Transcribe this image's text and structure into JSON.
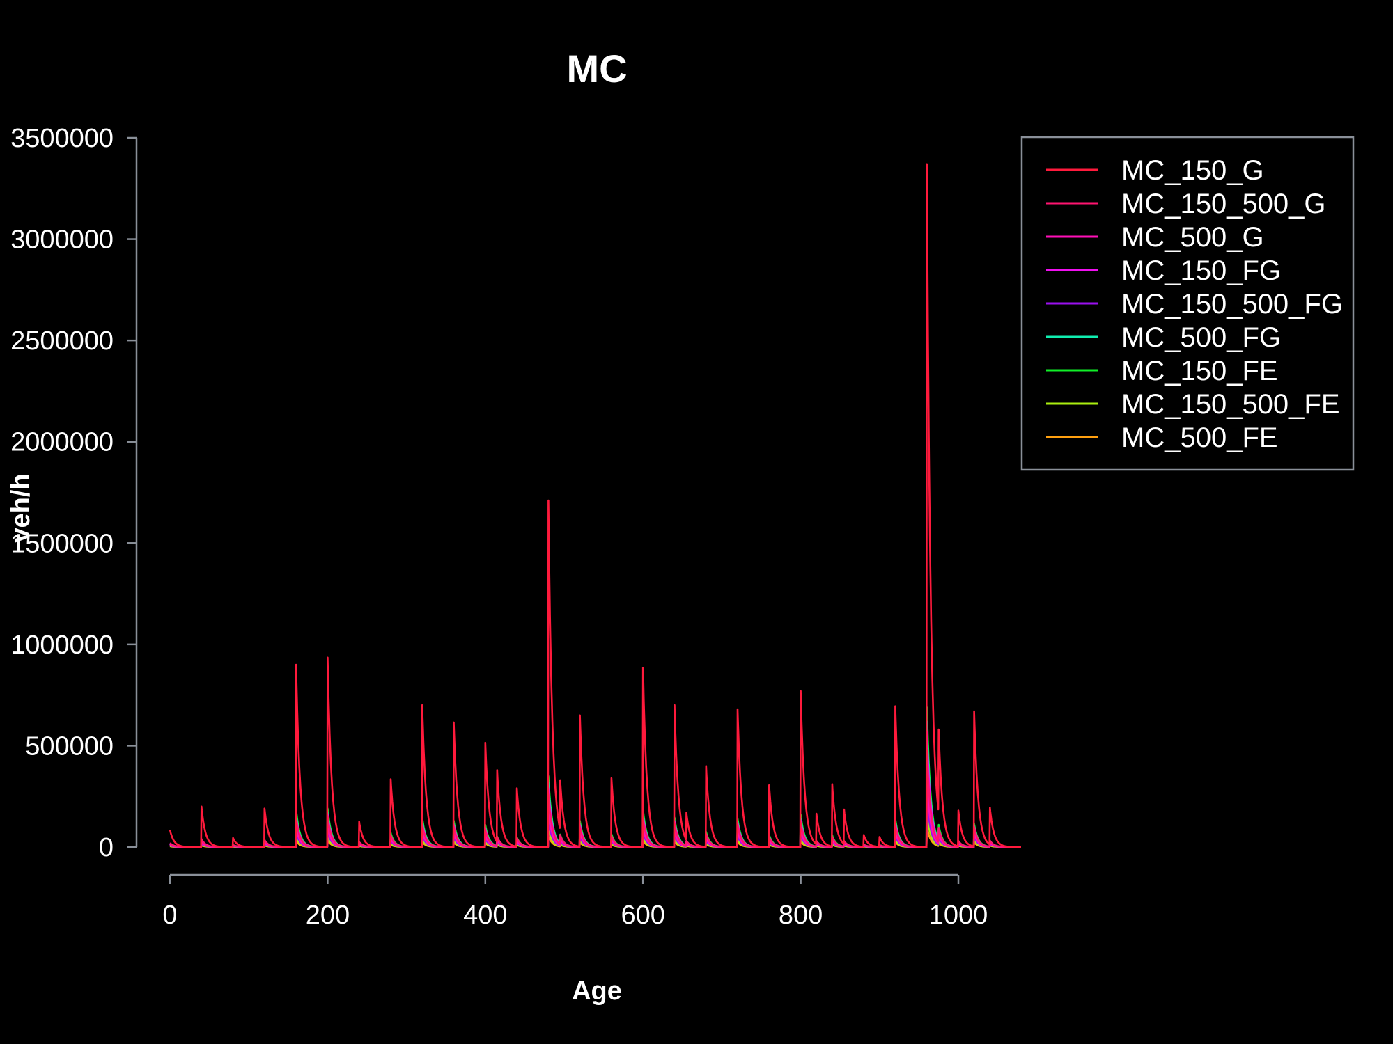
{
  "chart_data": {
    "type": "line",
    "title": "MC",
    "xlabel": "Age",
    "ylabel": "veh/h",
    "xlim": [
      0,
      1080
    ],
    "ylim": [
      0,
      3500000
    ],
    "xticks": [
      0,
      200,
      400,
      600,
      800,
      1000
    ],
    "yticks": [
      0,
      500000,
      1000000,
      1500000,
      2000000,
      2500000,
      3000000,
      3500000
    ],
    "xtick_labels": [
      "0",
      "200",
      "400",
      "600",
      "800",
      "1000"
    ],
    "ytick_labels": [
      "0",
      "500000",
      "1000000",
      "1500000",
      "2000000",
      "2500000",
      "3000000",
      "3500000"
    ],
    "legend_position": "top-right",
    "peaks_at": [
      0,
      40,
      80,
      120,
      160,
      200,
      240,
      280,
      320,
      360,
      400,
      415,
      440,
      480,
      495,
      520,
      560,
      600,
      640,
      655,
      680,
      720,
      760,
      800,
      820,
      840,
      855,
      880,
      900,
      920,
      960,
      975,
      1000,
      1020,
      1040
    ],
    "series": [
      {
        "name": "MC_150_G",
        "color": "#ff1a3c",
        "values": [
          85000,
          200000,
          45000,
          190000,
          900000,
          935000,
          125000,
          335000,
          700000,
          615000,
          515000,
          380000,
          290000,
          1710000,
          330000,
          650000,
          340000,
          885000,
          700000,
          170000,
          400000,
          680000,
          305000,
          770000,
          165000,
          310000,
          185000,
          60000,
          50000,
          695000,
          3370000,
          580000,
          180000,
          670000,
          195000
        ]
      },
      {
        "name": "MC_150_500_G",
        "color": "#ff1470",
        "values": [
          20000,
          40000,
          10000,
          35000,
          140000,
          150000,
          25000,
          60000,
          110000,
          100000,
          85000,
          50000,
          45000,
          260000,
          60000,
          100000,
          55000,
          140000,
          115000,
          30000,
          65000,
          110000,
          50000,
          120000,
          30000,
          50000,
          30000,
          12000,
          10000,
          110000,
          480000,
          95000,
          30000,
          100000,
          32000
        ]
      },
      {
        "name": "MC_500_G",
        "color": "#ff10b8",
        "values": [
          12000,
          25000,
          7000,
          22000,
          95000,
          100000,
          16000,
          40000,
          75000,
          68000,
          58000,
          35000,
          30000,
          180000,
          40000,
          70000,
          38000,
          95000,
          78000,
          20000,
          44000,
          75000,
          34000,
          82000,
          20000,
          34000,
          20000,
          8000,
          7000,
          75000,
          330000,
          65000,
          20000,
          70000,
          22000
        ]
      },
      {
        "name": "MC_150_FG",
        "color": "#ee10ee",
        "values": [
          16000,
          32000,
          9000,
          30000,
          150000,
          160000,
          22000,
          55000,
          120000,
          110000,
          92000,
          48000,
          42000,
          290000,
          55000,
          110000,
          52000,
          155000,
          125000,
          28000,
          62000,
          120000,
          50000,
          130000,
          28000,
          48000,
          28000,
          10000,
          9000,
          120000,
          570000,
          90000,
          28000,
          100000,
          30000
        ]
      },
      {
        "name": "MC_150_500_FG",
        "color": "#9a10ee",
        "values": [
          9000,
          18000,
          5000,
          16000,
          70000,
          75000,
          12000,
          30000,
          55000,
          50000,
          42000,
          25000,
          22000,
          130000,
          28000,
          50000,
          28000,
          70000,
          58000,
          15000,
          32000,
          55000,
          25000,
          60000,
          15000,
          25000,
          15000,
          6000,
          5000,
          55000,
          240000,
          48000,
          15000,
          52000,
          16000
        ]
      },
      {
        "name": "MC_500_FG",
        "color": "#10eeb0",
        "values": [
          14000,
          30000,
          8000,
          28000,
          160000,
          170000,
          20000,
          60000,
          130000,
          115000,
          95000,
          45000,
          40000,
          320000,
          55000,
          115000,
          55000,
          165000,
          130000,
          26000,
          65000,
          125000,
          52000,
          140000,
          26000,
          50000,
          26000,
          9000,
          8000,
          125000,
          620000,
          95000,
          26000,
          105000,
          28000
        ]
      },
      {
        "name": "MC_150_FE",
        "color": "#10ee28",
        "values": [
          18000,
          38000,
          10000,
          35000,
          185000,
          190000,
          25000,
          70000,
          145000,
          130000,
          110000,
          52000,
          48000,
          350000,
          62000,
          130000,
          64000,
          185000,
          145000,
          30000,
          75000,
          140000,
          60000,
          160000,
          30000,
          58000,
          30000,
          11000,
          10000,
          140000,
          690000,
          110000,
          30000,
          115000,
          32000
        ]
      },
      {
        "name": "MC_150_500_FE",
        "color": "#aaee10",
        "values": [
          6000,
          12000,
          3000,
          11000,
          50000,
          52000,
          8000,
          20000,
          38000,
          35000,
          30000,
          17000,
          15000,
          90000,
          19000,
          35000,
          19000,
          48000,
          40000,
          10000,
          22000,
          38000,
          17000,
          42000,
          10000,
          17000,
          10000,
          4000,
          3500,
          38000,
          165000,
          33000,
          10000,
          36000,
          11000
        ]
      },
      {
        "name": "MC_500_FE",
        "color": "#ffa010",
        "values": [
          4000,
          8000,
          2000,
          7000,
          30000,
          32000,
          5000,
          12000,
          24000,
          22000,
          19000,
          11000,
          10000,
          55000,
          12000,
          22000,
          12000,
          30000,
          25000,
          6000,
          14000,
          24000,
          11000,
          26000,
          6000,
          11000,
          6000,
          2500,
          2200,
          24000,
          100000,
          20000,
          6000,
          22000,
          7000
        ]
      }
    ]
  }
}
